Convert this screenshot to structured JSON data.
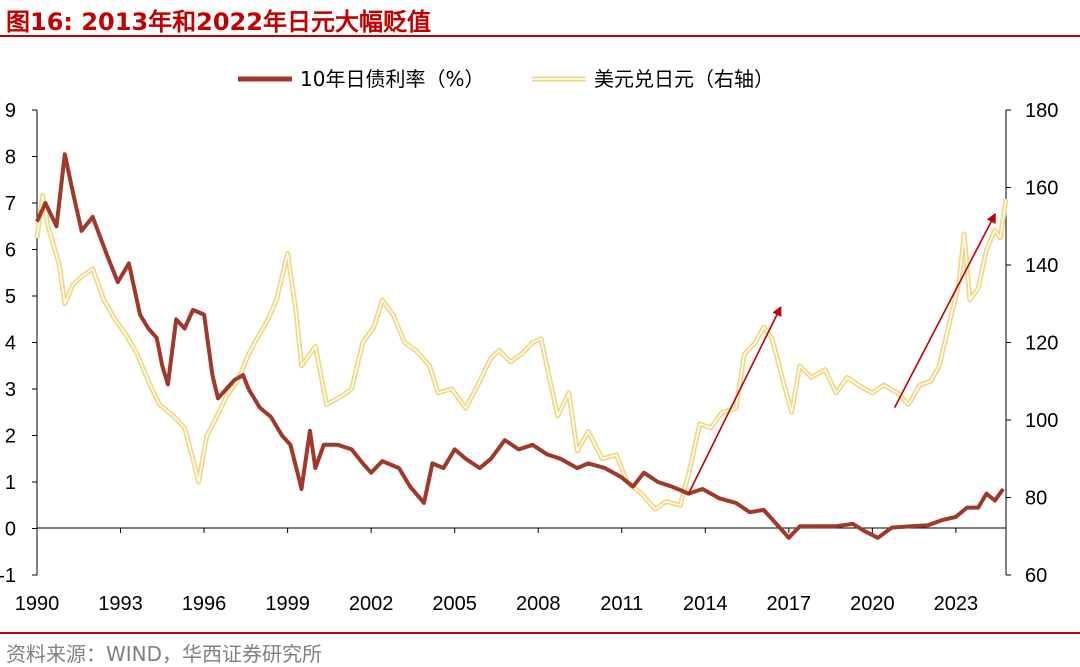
{
  "header": {
    "title": "图16:  2013年和2022年日元大幅贬值"
  },
  "footer": {
    "source": "资料来源：WIND，华西证券研究所"
  },
  "chart_data": {
    "type": "line",
    "title": "图16:  2013年和2022年日元大幅贬值",
    "x_ticks": [
      "1990",
      "1993",
      "1996",
      "1999",
      "2002",
      "2005",
      "2008",
      "2011",
      "2014",
      "2017",
      "2020",
      "2023"
    ],
    "y_left": {
      "min": -1,
      "max": 9,
      "ticks": [
        -1,
        0,
        1,
        2,
        3,
        4,
        5,
        6,
        7,
        8,
        9
      ]
    },
    "y_right": {
      "min": 60,
      "max": 180,
      "ticks": [
        60,
        80,
        100,
        120,
        140,
        160,
        180
      ]
    },
    "legend_position": "top-center",
    "grid": false,
    "series": [
      {
        "name": "10年日债利率（%）",
        "axis": "left",
        "color": "#a0392a",
        "points": [
          [
            1989.5,
            6.6
          ],
          [
            1989.8,
            7.0
          ],
          [
            1990.2,
            6.5
          ],
          [
            1990.5,
            8.05
          ],
          [
            1990.8,
            7.2
          ],
          [
            1991.1,
            6.4
          ],
          [
            1991.5,
            6.7
          ],
          [
            1992.0,
            5.9
          ],
          [
            1992.4,
            5.3
          ],
          [
            1992.8,
            5.7
          ],
          [
            1993.2,
            4.6
          ],
          [
            1993.5,
            4.3
          ],
          [
            1993.8,
            4.1
          ],
          [
            1994.0,
            3.5
          ],
          [
            1994.2,
            3.1
          ],
          [
            1994.5,
            4.5
          ],
          [
            1994.8,
            4.3
          ],
          [
            1995.1,
            4.7
          ],
          [
            1995.5,
            4.6
          ],
          [
            1995.8,
            3.3
          ],
          [
            1996.0,
            2.8
          ],
          [
            1996.3,
            3.0
          ],
          [
            1996.6,
            3.2
          ],
          [
            1996.9,
            3.3
          ],
          [
            1997.1,
            3.0
          ],
          [
            1997.5,
            2.6
          ],
          [
            1997.9,
            2.4
          ],
          [
            1998.3,
            2.0
          ],
          [
            1998.6,
            1.8
          ],
          [
            1998.9,
            1.1
          ],
          [
            1999.0,
            0.85
          ],
          [
            1999.3,
            2.1
          ],
          [
            1999.5,
            1.3
          ],
          [
            1999.8,
            1.8
          ],
          [
            2000.3,
            1.8
          ],
          [
            2000.8,
            1.7
          ],
          [
            2001.2,
            1.4
          ],
          [
            2001.5,
            1.2
          ],
          [
            2001.9,
            1.45
          ],
          [
            2002.5,
            1.3
          ],
          [
            2002.9,
            0.9
          ],
          [
            2003.4,
            0.55
          ],
          [
            2003.7,
            1.4
          ],
          [
            2004.1,
            1.3
          ],
          [
            2004.5,
            1.7
          ],
          [
            2004.9,
            1.5
          ],
          [
            2005.4,
            1.3
          ],
          [
            2005.8,
            1.5
          ],
          [
            2006.3,
            1.9
          ],
          [
            2006.8,
            1.7
          ],
          [
            2007.3,
            1.8
          ],
          [
            2007.8,
            1.6
          ],
          [
            2008.3,
            1.5
          ],
          [
            2008.9,
            1.3
          ],
          [
            2009.3,
            1.4
          ],
          [
            2009.9,
            1.3
          ],
          [
            2010.5,
            1.1
          ],
          [
            2010.9,
            0.9
          ],
          [
            2011.3,
            1.2
          ],
          [
            2011.8,
            1.0
          ],
          [
            2012.3,
            0.9
          ],
          [
            2012.9,
            0.75
          ],
          [
            2013.4,
            0.85
          ],
          [
            2014.0,
            0.65
          ],
          [
            2014.6,
            0.55
          ],
          [
            2015.1,
            0.35
          ],
          [
            2015.6,
            0.4
          ],
          [
            2016.2,
            0.0
          ],
          [
            2016.5,
            -0.2
          ],
          [
            2016.9,
            0.05
          ],
          [
            2017.5,
            0.05
          ],
          [
            2018.2,
            0.05
          ],
          [
            2018.8,
            0.1
          ],
          [
            2019.2,
            -0.05
          ],
          [
            2019.7,
            -0.2
          ],
          [
            2020.2,
            0.02
          ],
          [
            2020.9,
            0.05
          ],
          [
            2021.5,
            0.07
          ],
          [
            2022.0,
            0.18
          ],
          [
            2022.5,
            0.25
          ],
          [
            2022.9,
            0.45
          ],
          [
            2023.3,
            0.45
          ],
          [
            2023.6,
            0.75
          ],
          [
            2023.9,
            0.6
          ],
          [
            2024.2,
            0.85
          ]
        ]
      },
      {
        "name": "美元兑日元（右轴）",
        "axis": "right",
        "color": "#efd987",
        "points": [
          [
            1989.5,
            147
          ],
          [
            1989.7,
            158
          ],
          [
            1989.9,
            150
          ],
          [
            1990.3,
            140
          ],
          [
            1990.5,
            130
          ],
          [
            1990.8,
            135
          ],
          [
            1991.1,
            137
          ],
          [
            1991.5,
            139
          ],
          [
            1991.9,
            131
          ],
          [
            1992.3,
            126
          ],
          [
            1992.7,
            122
          ],
          [
            1993.1,
            117
          ],
          [
            1993.5,
            110
          ],
          [
            1993.9,
            104
          ],
          [
            1994.4,
            101
          ],
          [
            1994.8,
            98
          ],
          [
            1995.1,
            90
          ],
          [
            1995.3,
            84
          ],
          [
            1995.6,
            96
          ],
          [
            1995.9,
            100
          ],
          [
            1996.3,
            106
          ],
          [
            1996.7,
            110
          ],
          [
            1997.1,
            117
          ],
          [
            1997.4,
            121
          ],
          [
            1997.8,
            126
          ],
          [
            1998.1,
            131
          ],
          [
            1998.5,
            143
          ],
          [
            1998.8,
            128
          ],
          [
            1999.0,
            114
          ],
          [
            1999.5,
            119
          ],
          [
            1999.9,
            104
          ],
          [
            2000.4,
            106
          ],
          [
            2000.8,
            108
          ],
          [
            2001.2,
            120
          ],
          [
            2001.6,
            124
          ],
          [
            2001.9,
            131
          ],
          [
            2002.3,
            127
          ],
          [
            2002.7,
            120
          ],
          [
            2003.1,
            118
          ],
          [
            2003.6,
            114
          ],
          [
            2003.9,
            107
          ],
          [
            2004.4,
            108
          ],
          [
            2004.9,
            103
          ],
          [
            2005.4,
            110
          ],
          [
            2005.8,
            116
          ],
          [
            2006.1,
            118
          ],
          [
            2006.5,
            115
          ],
          [
            2006.9,
            117
          ],
          [
            2007.3,
            120
          ],
          [
            2007.6,
            121
          ],
          [
            2007.9,
            111
          ],
          [
            2008.2,
            101
          ],
          [
            2008.6,
            107
          ],
          [
            2008.9,
            92
          ],
          [
            2009.3,
            97
          ],
          [
            2009.8,
            90
          ],
          [
            2010.3,
            91
          ],
          [
            2010.7,
            84
          ],
          [
            2011.2,
            81
          ],
          [
            2011.7,
            77
          ],
          [
            2012.1,
            79
          ],
          [
            2012.6,
            78
          ],
          [
            2012.9,
            86
          ],
          [
            2013.3,
            99
          ],
          [
            2013.7,
            98
          ],
          [
            2014.1,
            102
          ],
          [
            2014.6,
            103
          ],
          [
            2014.9,
            117
          ],
          [
            2015.3,
            120
          ],
          [
            2015.6,
            124
          ],
          [
            2015.9,
            121
          ],
          [
            2016.3,
            110
          ],
          [
            2016.6,
            102
          ],
          [
            2016.9,
            114
          ],
          [
            2017.3,
            111
          ],
          [
            2017.8,
            113
          ],
          [
            2018.2,
            107
          ],
          [
            2018.6,
            111
          ],
          [
            2019.0,
            109
          ],
          [
            2019.5,
            107
          ],
          [
            2019.9,
            109
          ],
          [
            2020.4,
            107
          ],
          [
            2020.8,
            104
          ],
          [
            2021.2,
            109
          ],
          [
            2021.6,
            110
          ],
          [
            2021.9,
            114
          ],
          [
            2022.3,
            126
          ],
          [
            2022.6,
            135
          ],
          [
            2022.8,
            148
          ],
          [
            2023.0,
            131
          ],
          [
            2023.3,
            134
          ],
          [
            2023.6,
            144
          ],
          [
            2023.9,
            149
          ],
          [
            2024.1,
            147
          ],
          [
            2024.3,
            157
          ]
        ]
      }
    ],
    "annotations": [
      {
        "type": "arrow",
        "color": "#c00000",
        "from": [
          2012.9,
          0.75
        ],
        "to": [
          2016.2,
          4.75
        ]
      },
      {
        "type": "arrow",
        "color": "#c00000",
        "from": [
          2020.3,
          2.6
        ],
        "to": [
          2023.9,
          6.75
        ]
      }
    ]
  }
}
